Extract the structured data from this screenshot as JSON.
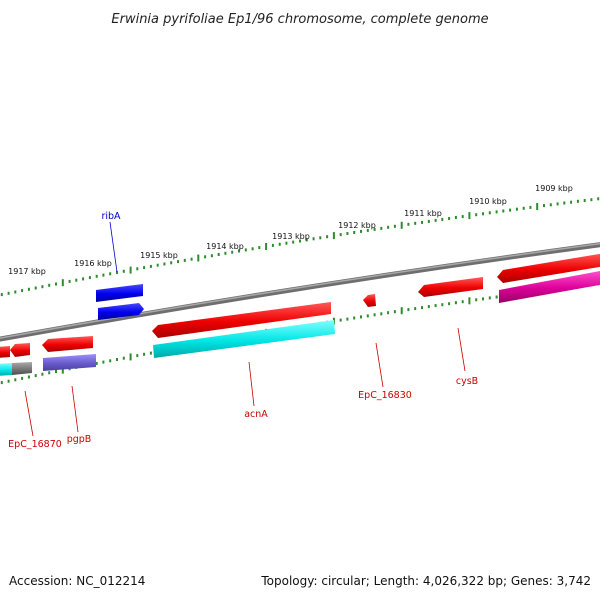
{
  "title": "Erwinia pyrifoliae Ep1/96 chromosome, complete genome",
  "footer": {
    "accession": "Accession: NC_012214",
    "summary": "Topology: circular; Length: 4,026,322 bp; Genes: 3,742"
  },
  "ticks": [
    "1917 kbp",
    "1916 kbp",
    "1915 kbp",
    "1914 kbp",
    "1913 kbp",
    "1912 kbp",
    "1911 kbp",
    "1910 kbp",
    "1909 kbp"
  ],
  "gene_labels": [
    {
      "name": "ribA",
      "color": "#0000cc"
    },
    {
      "name": "acnA",
      "color": "#cc0000"
    },
    {
      "name": "EpC_16830",
      "color": "#cc0000"
    },
    {
      "name": "cysB",
      "color": "#cc0000"
    },
    {
      "name": "EpC_16870",
      "color": "#cc0000"
    },
    {
      "name": "pgpB",
      "color": "#cc0000"
    }
  ],
  "colors": {
    "backbone": "#808080",
    "tick": "#2e8b2e",
    "gene_red": "#ee0000",
    "gene_blue": "#0000ee",
    "gene_cyan": "#00e5e5",
    "gene_magenta": "#dd0099",
    "gene_purple": "#6a5acd",
    "gene_gray": "#777777"
  }
}
